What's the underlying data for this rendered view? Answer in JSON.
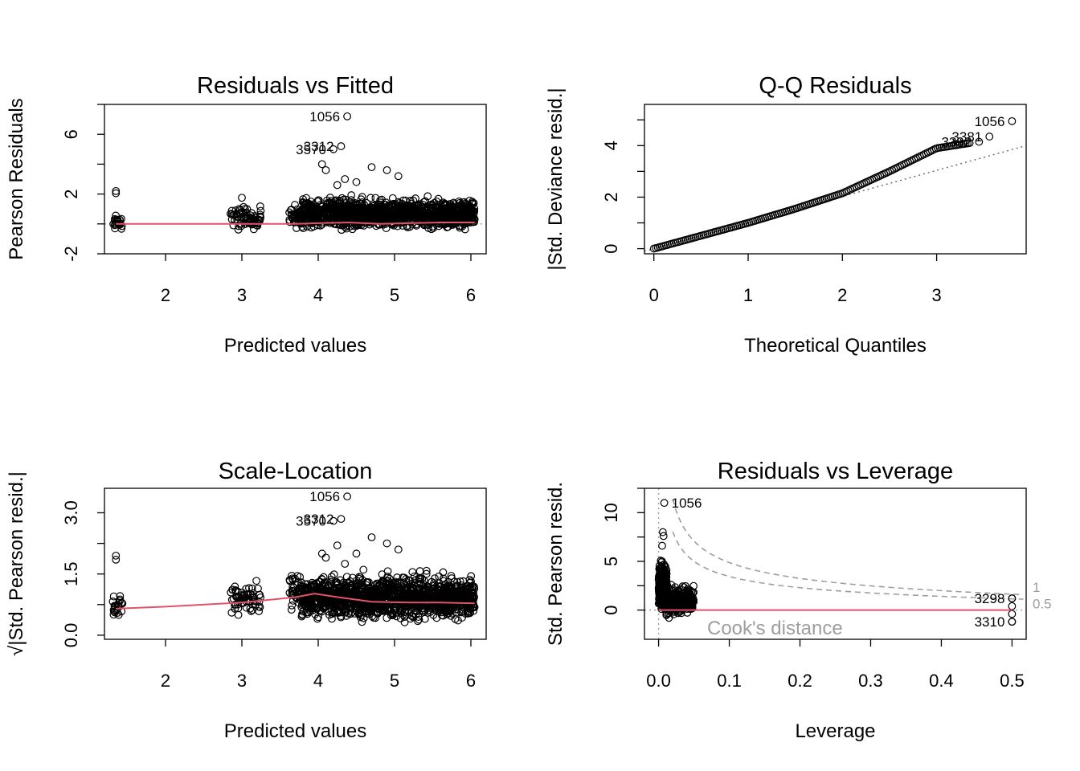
{
  "chart_data": [
    {
      "type": "scatter",
      "title": "Residuals vs Fitted",
      "xlabel": "Predicted values",
      "ylabel": "Pearson Residuals",
      "xlim": [
        1.2,
        6.2
      ],
      "ylim": [
        -2,
        8
      ],
      "xticks": [
        2,
        3,
        4,
        5,
        6
      ],
      "yticks": [
        -2,
        2,
        6
      ],
      "clusters": [
        {
          "x": [
            1.3,
            1.45
          ],
          "y": [
            -0.8,
            0.9
          ],
          "n": 24
        },
        {
          "x": [
            2.85,
            3.25
          ],
          "y": [
            -0.9,
            1.7
          ],
          "n": 70
        },
        {
          "x": [
            3.62,
            3.78
          ],
          "y": [
            -0.9,
            1.8
          ],
          "n": 40
        },
        {
          "x": [
            3.78,
            6.05
          ],
          "y": [
            -0.9,
            2.3
          ],
          "n": 1300
        }
      ],
      "points": [
        [
          1.35,
          2.2
        ],
        [
          1.35,
          2.05
        ],
        [
          3.0,
          1.75
        ],
        [
          4.05,
          4.0
        ],
        [
          4.1,
          3.6
        ],
        [
          4.35,
          3.0
        ],
        [
          4.7,
          3.8
        ],
        [
          4.9,
          3.6
        ],
        [
          5.05,
          3.2
        ],
        [
          4.5,
          2.8
        ],
        [
          4.25,
          2.6
        ]
      ],
      "labeled_points": [
        {
          "label": "1056",
          "x": 4.38,
          "y": 7.2
        },
        {
          "label": "3312",
          "x": 4.3,
          "y": 5.2
        },
        {
          "label": "3570",
          "x": 4.2,
          "y": 5.0
        }
      ],
      "smooth": {
        "x": [
          1.35,
          2.0,
          3.0,
          3.7,
          4.0,
          4.4,
          4.8,
          5.2,
          5.6,
          6.05
        ],
        "y": [
          0.0,
          0.0,
          0.0,
          0.0,
          0.05,
          0.1,
          0.0,
          0.05,
          0.1,
          0.1
        ]
      },
      "refline_y": 0
    },
    {
      "type": "scatter",
      "title": "Q-Q Residuals",
      "xlabel": "Theoretical Quantiles",
      "ylabel": "|Std. Deviance resid.|",
      "xlim": [
        -0.1,
        3.95
      ],
      "ylim": [
        -0.2,
        5.6
      ],
      "xticks": [
        0,
        1,
        2,
        3
      ],
      "yticks": [
        0,
        2,
        4
      ],
      "curve": {
        "x": [
          0,
          0.5,
          1.0,
          1.5,
          2.0,
          2.5,
          3.0,
          3.35
        ],
        "y": [
          0,
          0.5,
          1.0,
          1.55,
          2.15,
          3.0,
          3.9,
          4.1
        ]
      },
      "labeled_points": [
        {
          "label": "1056",
          "x": 3.8,
          "y": 4.95
        },
        {
          "label": "3381",
          "x": 3.56,
          "y": 4.35
        },
        {
          "label": "3392",
          "x": 3.45,
          "y": 4.15
        }
      ],
      "qqline": {
        "x": [
          -0.1,
          3.95
        ],
        "y": [
          -0.1,
          4.0
        ]
      }
    },
    {
      "type": "scatter",
      "title": "Scale-Location",
      "xlabel": "Predicted values",
      "ylabel": "√|Std. Pearson resid.|",
      "xlim": [
        1.2,
        6.2
      ],
      "ylim": [
        -0.1,
        3.6
      ],
      "xticks": [
        2,
        3,
        4,
        5,
        6
      ],
      "yticks": [
        0.0,
        1.5,
        3.0
      ],
      "ytick_labels": [
        "0.0",
        "1.5",
        "3.0"
      ],
      "clusters": [
        {
          "x": [
            1.3,
            1.45
          ],
          "y": [
            0.2,
            1.2
          ],
          "n": 24
        },
        {
          "x": [
            2.85,
            3.25
          ],
          "y": [
            0.1,
            1.6
          ],
          "n": 70
        },
        {
          "x": [
            3.62,
            3.78
          ],
          "y": [
            0.4,
            1.8
          ],
          "n": 40
        },
        {
          "x": [
            3.78,
            6.05
          ],
          "y": [
            0.05,
            1.8
          ],
          "n": 1400
        }
      ],
      "points": [
        [
          1.35,
          1.95
        ],
        [
          1.35,
          1.85
        ],
        [
          4.05,
          2.0
        ],
        [
          4.1,
          1.9
        ],
        [
          4.35,
          1.75
        ],
        [
          4.7,
          2.4
        ],
        [
          4.9,
          2.25
        ],
        [
          5.05,
          2.1
        ],
        [
          4.5,
          2.0
        ],
        [
          4.25,
          2.2
        ]
      ],
      "labeled_points": [
        {
          "label": "1056",
          "x": 4.38,
          "y": 3.4
        },
        {
          "label": "3312",
          "x": 4.3,
          "y": 2.85
        },
        {
          "label": "3570",
          "x": 4.2,
          "y": 2.8
        }
      ],
      "smooth": {
        "x": [
          1.35,
          2.0,
          3.0,
          3.7,
          3.95,
          4.3,
          4.7,
          5.2,
          5.6,
          6.05
        ],
        "y": [
          0.65,
          0.7,
          0.8,
          0.93,
          1.02,
          0.92,
          0.82,
          0.8,
          0.8,
          0.78
        ]
      }
    },
    {
      "type": "scatter",
      "title": "Residuals vs Leverage",
      "xlabel": "Leverage",
      "ylabel": "Std. Pearson resid.",
      "xlim": [
        -0.02,
        0.52
      ],
      "ylim": [
        -3,
        12.5
      ],
      "xticks": [
        0.0,
        0.1,
        0.2,
        0.3,
        0.4,
        0.5
      ],
      "xtick_labels": [
        "0.0",
        "0.1",
        "0.2",
        "0.3",
        "0.4",
        "0.5"
      ],
      "yticks": [
        0,
        5,
        10
      ],
      "clusters": [
        {
          "x": [
            0.0,
            0.012
          ],
          "y": [
            -1.5,
            6.5
          ],
          "n": 250
        },
        {
          "x": [
            0.008,
            0.05
          ],
          "y": [
            -1.5,
            3.5
          ],
          "n": 300
        }
      ],
      "points": [
        [
          0.006,
          8.0
        ],
        [
          0.007,
          7.6
        ],
        [
          0.005,
          6.6
        ],
        [
          0.5,
          1.2
        ],
        [
          0.5,
          0.4
        ],
        [
          0.5,
          -0.4
        ],
        [
          0.5,
          -1.2
        ]
      ],
      "labeled_points": [
        {
          "label": "1056",
          "x": 0.008,
          "y": 11.0
        },
        {
          "label": "3298",
          "x": 0.5,
          "y": 1.2
        },
        {
          "label": "3310",
          "x": 0.5,
          "y": -1.2
        }
      ],
      "smooth": {
        "x": [
          0.0,
          0.05,
          0.2,
          0.3,
          0.4,
          0.5
        ],
        "y": [
          0,
          0,
          0,
          0,
          0,
          0
        ]
      },
      "refline_y": 0,
      "refline_x": 0,
      "cook_levels": [
        "1",
        "0.5"
      ],
      "cook_label": "Cook's distance"
    }
  ]
}
